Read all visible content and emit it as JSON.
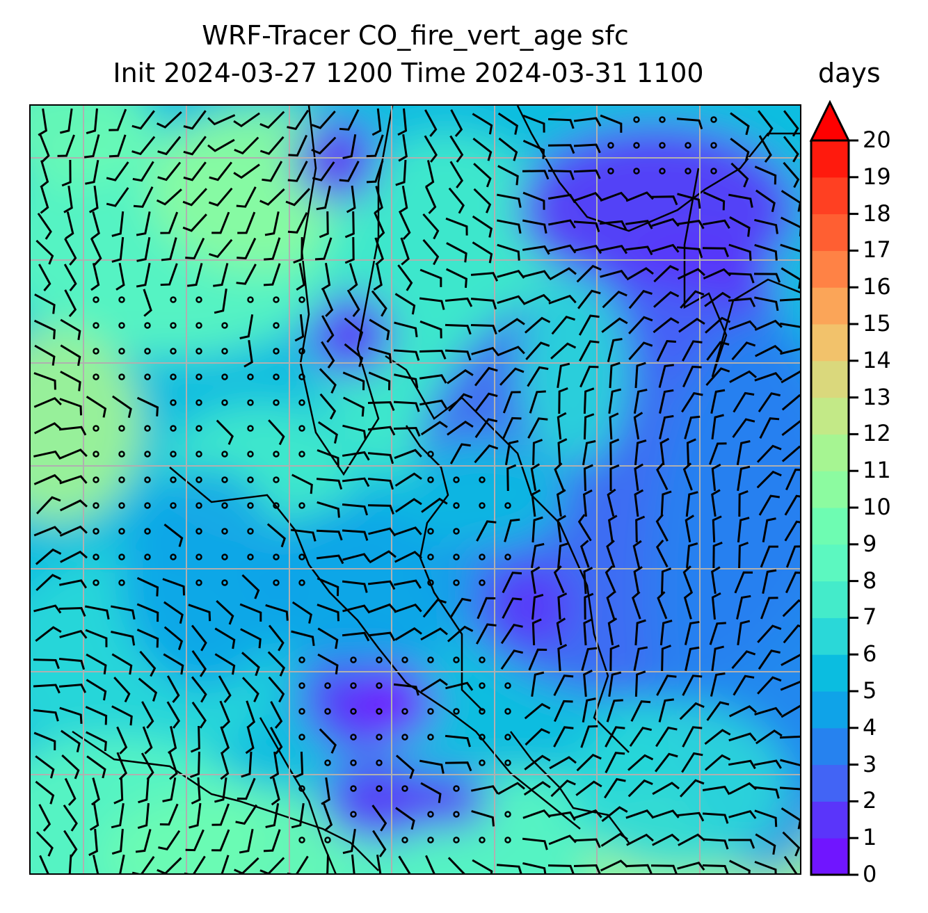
{
  "title": {
    "line1": "WRF-Tracer CO_fire_vert_age sfc",
    "line2": "Init 2024-03-27 1200 Time 2024-03-31 1100",
    "units": "days"
  },
  "colorbar": {
    "ticks": [
      "0",
      "1",
      "2",
      "3",
      "4",
      "5",
      "6",
      "7",
      "8",
      "9",
      "10",
      "11",
      "12",
      "13",
      "14",
      "15",
      "16",
      "17",
      "18",
      "19",
      "20"
    ],
    "colors": [
      "#7015ff",
      "#5a35fa",
      "#4264f5",
      "#2682ef",
      "#0fa3e8",
      "#0bbde0",
      "#2ad8d8",
      "#44ebca",
      "#5cf8c0",
      "#6efcb2",
      "#8cfba0",
      "#a6f592",
      "#c3e987",
      "#dad87c",
      "#f2c26b",
      "#fba558",
      "#ff8245",
      "#ff5f32",
      "#ff4022",
      "#ff1a0d"
    ],
    "extend_color": "#ff0000"
  }
}
